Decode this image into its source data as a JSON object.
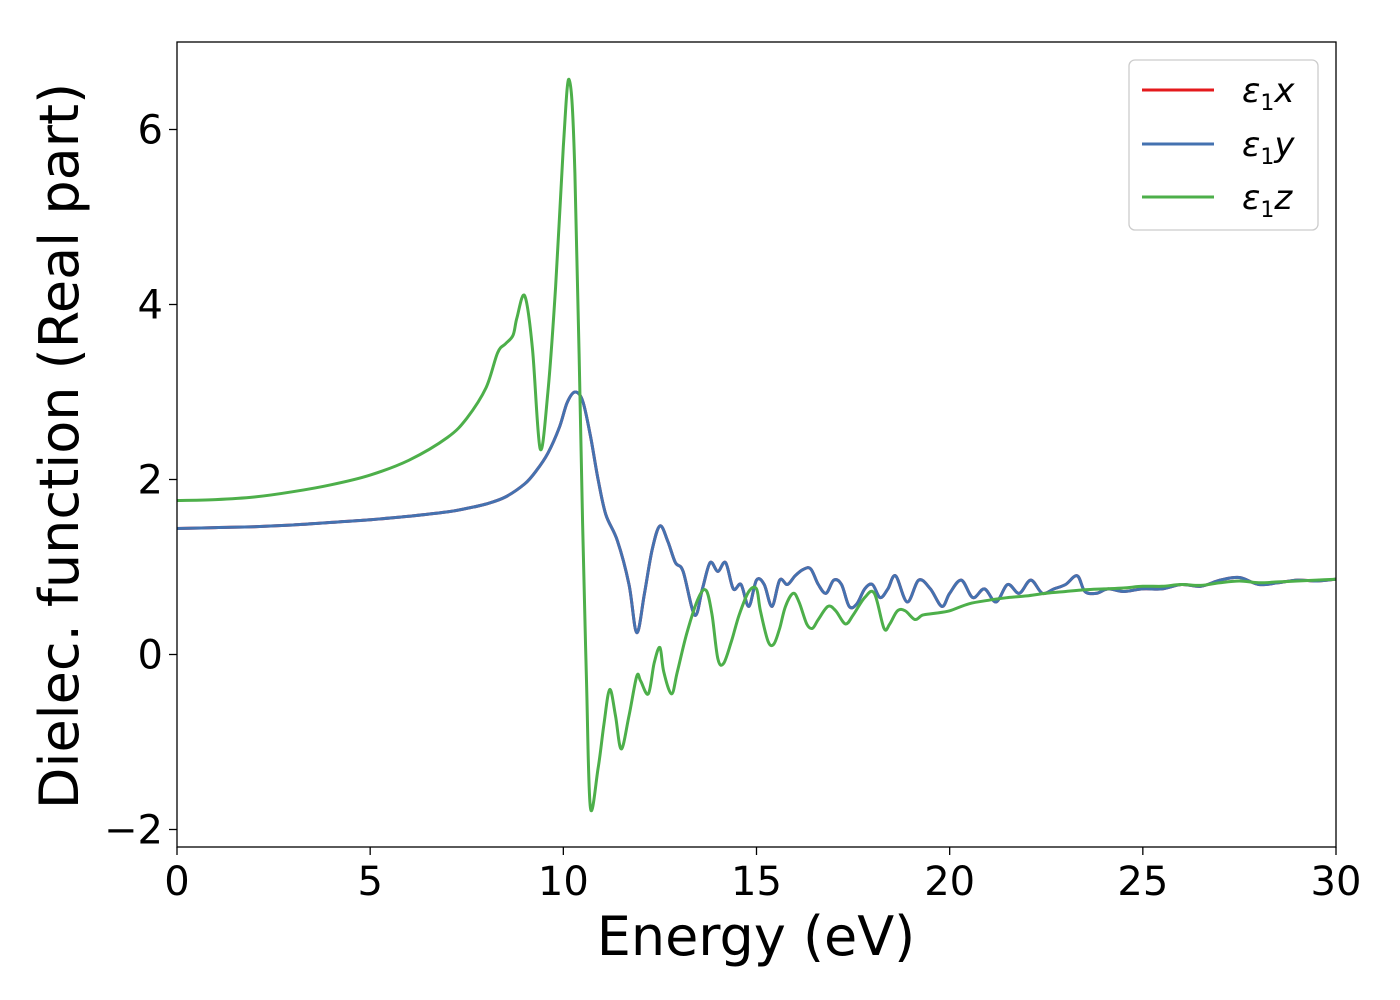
{
  "chart_data": {
    "type": "line",
    "xlabel": "Energy (eV)",
    "ylabel": "Dielec. function (Real part)",
    "xlim": [
      0,
      30
    ],
    "ylim": [
      -2.2,
      7.0
    ],
    "xticks": [
      0,
      5,
      10,
      15,
      20,
      25,
      30
    ],
    "yticks": [
      -2,
      0,
      2,
      4,
      6
    ],
    "xtick_labels": [
      "0",
      "5",
      "10",
      "15",
      "20",
      "25",
      "30"
    ],
    "ytick_labels": [
      "−2",
      "0",
      "2",
      "4",
      "6"
    ],
    "grid": false,
    "legend_position": "top-right",
    "series": [
      {
        "name": "ε1x",
        "legend_main": "ε",
        "legend_sub": "1",
        "legend_suffix": "x",
        "color": "#e41a1c",
        "x": [
          0,
          1,
          2,
          3,
          4,
          5,
          6,
          7,
          7.5,
          8,
          8.5,
          9,
          9.3,
          9.6,
          9.9,
          10.1,
          10.3,
          10.5,
          10.7,
          10.9,
          11.1,
          11.4,
          11.7,
          11.9,
          12.1,
          12.3,
          12.5,
          12.7,
          12.9,
          13.1,
          13.4,
          13.6,
          13.8,
          14.0,
          14.2,
          14.4,
          14.6,
          14.8,
          15.0,
          15.2,
          15.4,
          15.6,
          15.8,
          16.0,
          16.2,
          16.4,
          16.6,
          16.8,
          17.0,
          17.2,
          17.4,
          17.6,
          17.8,
          18.0,
          18.2,
          18.4,
          18.6,
          18.9,
          19.2,
          19.5,
          19.8,
          20.0,
          20.3,
          20.6,
          20.9,
          21.2,
          21.5,
          21.8,
          22.1,
          22.4,
          22.7,
          23.0,
          23.3,
          23.5,
          23.8,
          24.1,
          24.5,
          25.0,
          25.5,
          26.0,
          26.5,
          27.0,
          27.5,
          28.0,
          28.5,
          29.0,
          29.5,
          30.0
        ],
        "values": [
          1.44,
          1.45,
          1.46,
          1.48,
          1.51,
          1.54,
          1.58,
          1.63,
          1.67,
          1.72,
          1.8,
          1.95,
          2.1,
          2.3,
          2.6,
          2.88,
          3.0,
          2.9,
          2.5,
          2.0,
          1.6,
          1.3,
          0.8,
          0.25,
          0.7,
          1.2,
          1.47,
          1.3,
          1.05,
          0.95,
          0.45,
          0.75,
          1.05,
          0.95,
          1.05,
          0.75,
          0.8,
          0.55,
          0.85,
          0.8,
          0.55,
          0.85,
          0.8,
          0.9,
          0.97,
          0.98,
          0.8,
          0.7,
          0.85,
          0.8,
          0.55,
          0.58,
          0.75,
          0.8,
          0.65,
          0.75,
          0.9,
          0.6,
          0.85,
          0.75,
          0.55,
          0.7,
          0.85,
          0.65,
          0.75,
          0.6,
          0.8,
          0.7,
          0.85,
          0.7,
          0.75,
          0.8,
          0.9,
          0.72,
          0.7,
          0.75,
          0.72,
          0.75,
          0.75,
          0.8,
          0.78,
          0.85,
          0.88,
          0.8,
          0.82,
          0.85,
          0.84,
          0.86
        ]
      },
      {
        "name": "ε1y",
        "legend_main": "ε",
        "legend_sub": "1",
        "legend_suffix": "y",
        "color": "#4472b0",
        "x": [
          0,
          1,
          2,
          3,
          4,
          5,
          6,
          7,
          7.5,
          8,
          8.5,
          9,
          9.3,
          9.6,
          9.9,
          10.1,
          10.3,
          10.5,
          10.7,
          10.9,
          11.1,
          11.4,
          11.7,
          11.9,
          12.1,
          12.3,
          12.5,
          12.7,
          12.9,
          13.1,
          13.4,
          13.6,
          13.8,
          14.0,
          14.2,
          14.4,
          14.6,
          14.8,
          15.0,
          15.2,
          15.4,
          15.6,
          15.8,
          16.0,
          16.2,
          16.4,
          16.6,
          16.8,
          17.0,
          17.2,
          17.4,
          17.6,
          17.8,
          18.0,
          18.2,
          18.4,
          18.6,
          18.9,
          19.2,
          19.5,
          19.8,
          20.0,
          20.3,
          20.6,
          20.9,
          21.2,
          21.5,
          21.8,
          22.1,
          22.4,
          22.7,
          23.0,
          23.3,
          23.5,
          23.8,
          24.1,
          24.5,
          25.0,
          25.5,
          26.0,
          26.5,
          27.0,
          27.5,
          28.0,
          28.5,
          29.0,
          29.5,
          30.0
        ],
        "values": [
          1.44,
          1.45,
          1.46,
          1.48,
          1.51,
          1.54,
          1.58,
          1.63,
          1.67,
          1.72,
          1.8,
          1.95,
          2.1,
          2.3,
          2.6,
          2.88,
          3.0,
          2.9,
          2.5,
          2.0,
          1.6,
          1.3,
          0.8,
          0.25,
          0.7,
          1.2,
          1.47,
          1.3,
          1.05,
          0.95,
          0.45,
          0.75,
          1.05,
          0.95,
          1.05,
          0.75,
          0.8,
          0.55,
          0.85,
          0.8,
          0.55,
          0.85,
          0.8,
          0.9,
          0.97,
          0.98,
          0.8,
          0.7,
          0.85,
          0.8,
          0.55,
          0.58,
          0.75,
          0.8,
          0.65,
          0.75,
          0.9,
          0.6,
          0.85,
          0.75,
          0.55,
          0.7,
          0.85,
          0.65,
          0.75,
          0.6,
          0.8,
          0.7,
          0.85,
          0.7,
          0.75,
          0.8,
          0.9,
          0.72,
          0.7,
          0.75,
          0.72,
          0.75,
          0.75,
          0.8,
          0.78,
          0.85,
          0.88,
          0.8,
          0.82,
          0.85,
          0.84,
          0.86
        ]
      },
      {
        "name": "ε1z",
        "legend_main": "ε",
        "legend_sub": "1",
        "legend_suffix": "z",
        "color": "#4daf4a",
        "x": [
          0,
          1,
          2,
          3,
          4,
          5,
          6,
          7,
          7.5,
          8,
          8.3,
          8.5,
          8.7,
          8.8,
          9.0,
          9.2,
          9.4,
          9.6,
          9.8,
          10.0,
          10.15,
          10.3,
          10.5,
          10.6,
          10.7,
          10.9,
          11.05,
          11.2,
          11.35,
          11.5,
          11.7,
          11.9,
          12.0,
          12.2,
          12.35,
          12.5,
          12.6,
          12.8,
          12.95,
          13.2,
          13.5,
          13.7,
          13.85,
          14.0,
          14.15,
          14.35,
          14.55,
          14.8,
          15.0,
          15.1,
          15.3,
          15.45,
          15.6,
          15.75,
          15.95,
          16.1,
          16.3,
          16.45,
          16.6,
          16.85,
          17.05,
          17.3,
          17.5,
          17.8,
          18.05,
          18.3,
          18.45,
          18.65,
          18.85,
          19.1,
          19.3,
          19.6,
          20.0,
          20.5,
          21.0,
          21.5,
          22.0,
          22.5,
          23.0,
          23.5,
          24.0,
          24.5,
          25.0,
          25.5,
          26.0,
          26.5,
          27.0,
          27.5,
          28.0,
          28.5,
          29.0,
          29.5,
          30.0
        ],
        "values": [
          1.76,
          1.77,
          1.8,
          1.86,
          1.94,
          2.05,
          2.22,
          2.48,
          2.7,
          3.05,
          3.45,
          3.55,
          3.65,
          3.85,
          4.1,
          3.5,
          2.35,
          3.0,
          4.2,
          5.8,
          6.57,
          5.5,
          1.5,
          -0.3,
          -1.75,
          -1.3,
          -0.8,
          -0.4,
          -0.7,
          -1.08,
          -0.7,
          -0.25,
          -0.3,
          -0.45,
          -0.1,
          0.08,
          -0.2,
          -0.45,
          -0.2,
          0.25,
          0.65,
          0.73,
          0.45,
          -0.05,
          -0.1,
          0.15,
          0.45,
          0.72,
          0.75,
          0.5,
          0.15,
          0.12,
          0.3,
          0.55,
          0.7,
          0.6,
          0.35,
          0.3,
          0.4,
          0.55,
          0.5,
          0.35,
          0.45,
          0.65,
          0.7,
          0.3,
          0.35,
          0.5,
          0.5,
          0.4,
          0.45,
          0.47,
          0.5,
          0.58,
          0.62,
          0.65,
          0.67,
          0.7,
          0.72,
          0.74,
          0.75,
          0.76,
          0.78,
          0.78,
          0.8,
          0.79,
          0.82,
          0.84,
          0.82,
          0.83,
          0.84,
          0.85,
          0.86
        ]
      }
    ]
  }
}
